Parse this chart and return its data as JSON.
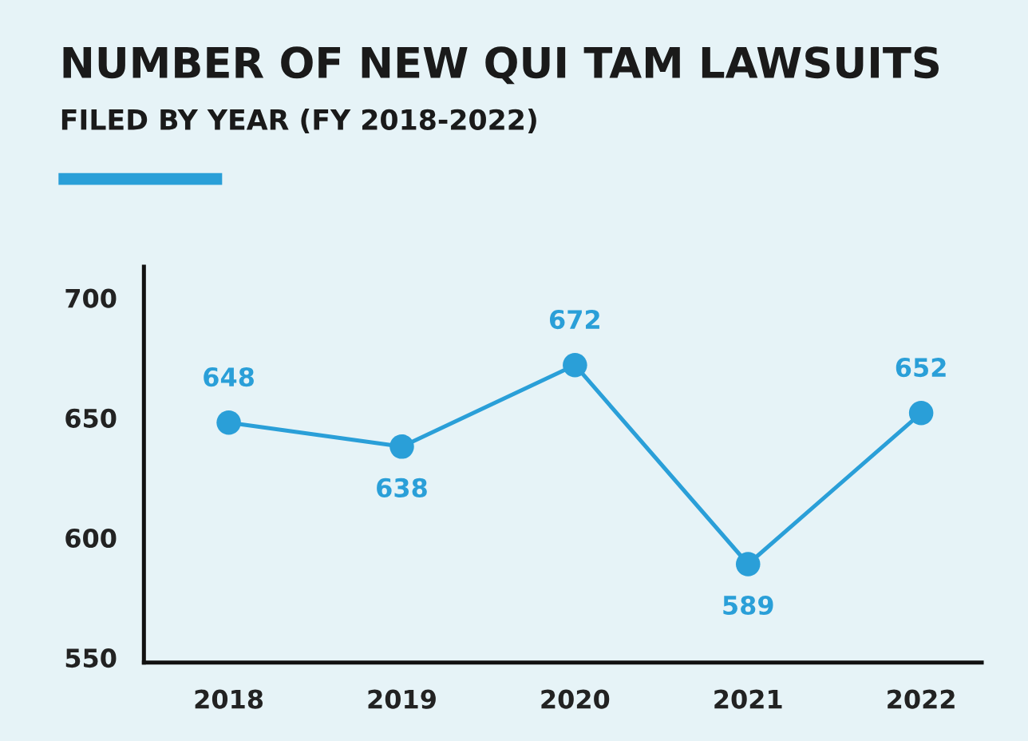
{
  "chart_data": {
    "type": "line",
    "title": "NUMBER OF NEW QUI TAM LAWSUITS",
    "subtitle": "FILED BY YEAR (FY 2018-2022)",
    "categories": [
      "2018",
      "2019",
      "2020",
      "2021",
      "2022"
    ],
    "series": [
      {
        "color": "#2a9fd8",
        "values": [
          648,
          638,
          672,
          589,
          652
        ]
      }
    ],
    "ylim": [
      548,
      713
    ],
    "yticks": [
      550,
      600,
      650,
      700
    ],
    "grid": false,
    "marker": "circle",
    "line_style": "solid",
    "data_labels": true
  }
}
